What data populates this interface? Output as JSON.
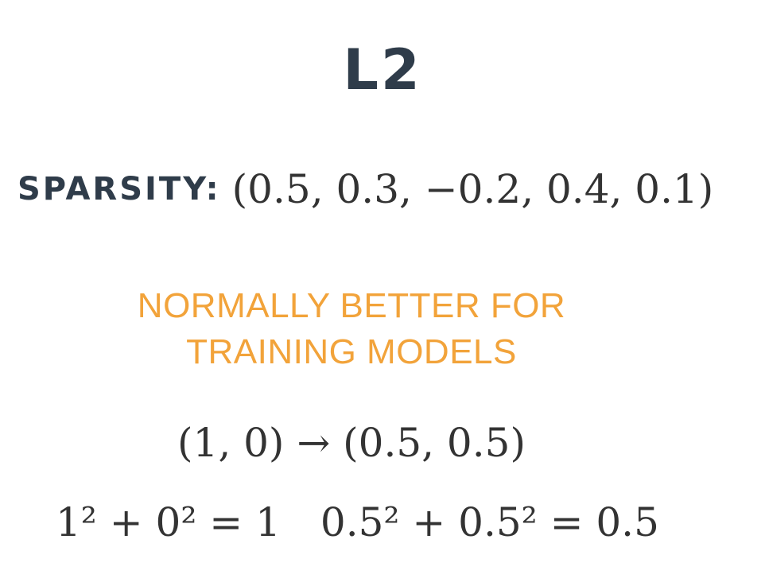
{
  "slide": {
    "title": "L2",
    "sparsity": {
      "label": "SPARSITY:",
      "vector": "(0.5, 0.3, −0.2, 0.4, 0.1)"
    },
    "note": {
      "line1": "NORMALLY BETTER FOR",
      "line2": "TRAINING MODELS",
      "color": "#f2a33a"
    },
    "mapping": "(1, 0) → (0.5, 0.5)",
    "norms": {
      "left": "1² + 0² = 1",
      "right": "0.5² + 0.5² = 0.5"
    }
  }
}
